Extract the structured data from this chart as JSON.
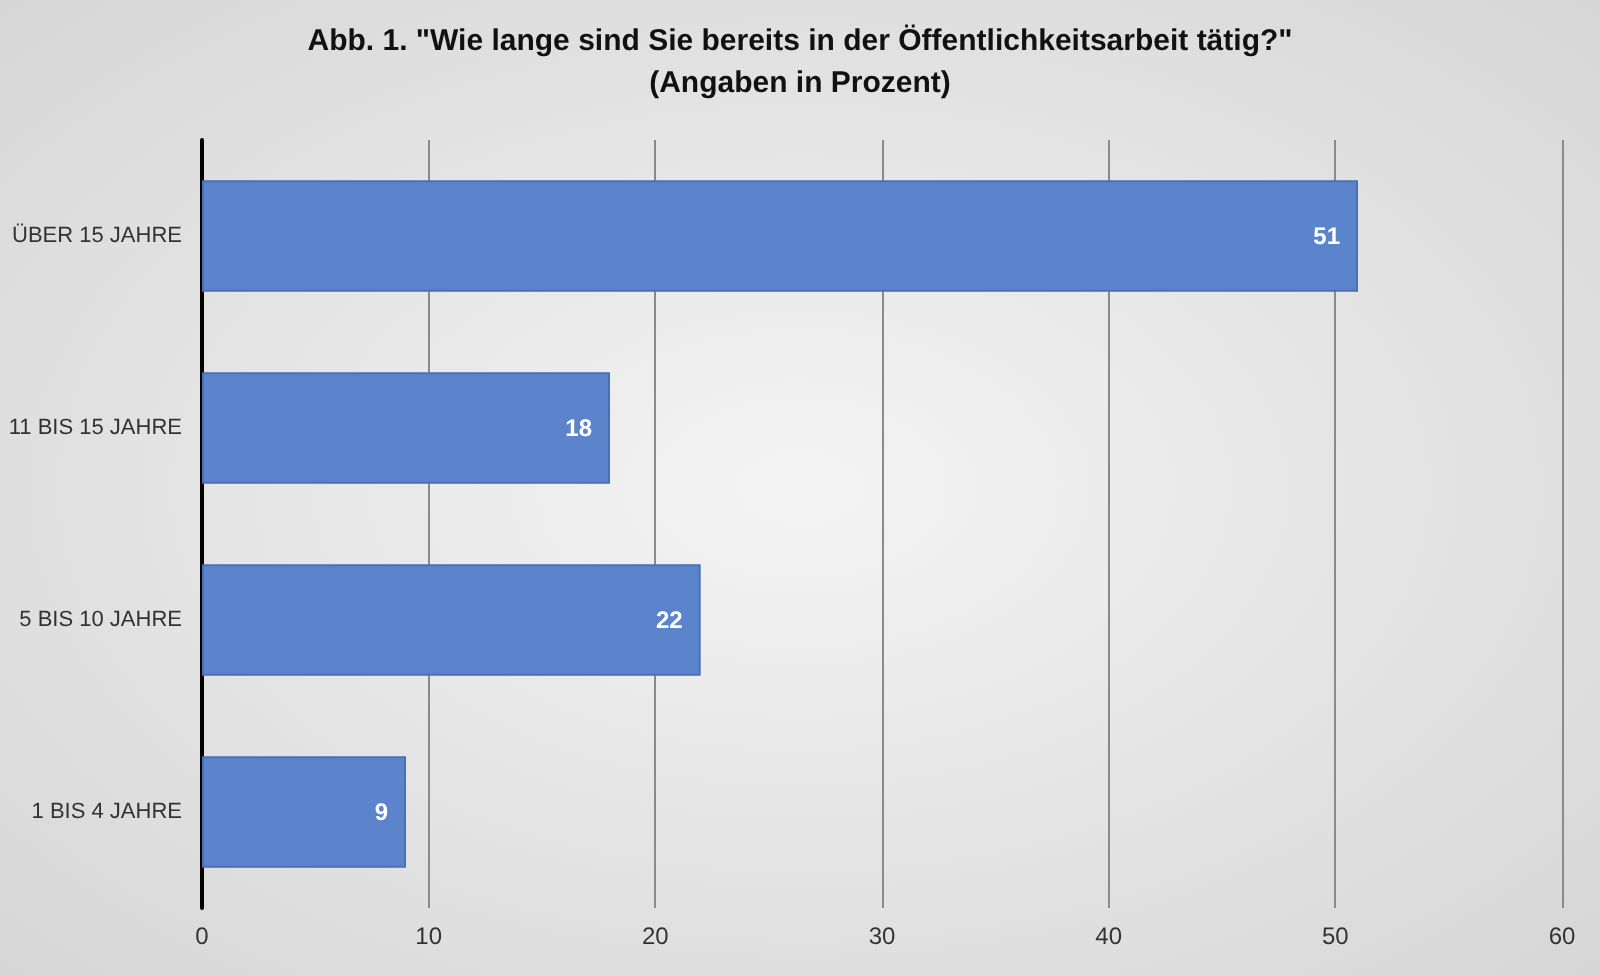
{
  "chart_data": {
    "type": "bar",
    "orientation": "horizontal",
    "title": "Abb. 1. \"Wie lange sind Sie bereits in der Öffentlichkeitsarbeit tätig?\"",
    "subtitle": "(Angaben in Prozent)",
    "categories": [
      "ÜBER 15 JAHRE",
      "11 BIS 15 JAHRE",
      "5 BIS 10 JAHRE",
      "1 BIS 4 JAHRE"
    ],
    "values": [
      51,
      18,
      22,
      9
    ],
    "color": "#5b84cc",
    "xlim": [
      0,
      60
    ],
    "xticks": [
      0,
      10,
      20,
      30,
      40,
      50,
      60
    ],
    "grid": "x",
    "data_labels": true
  }
}
